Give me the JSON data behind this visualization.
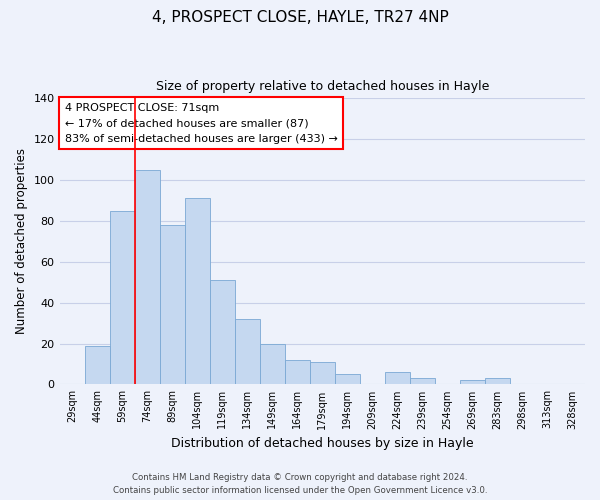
{
  "title": "4, PROSPECT CLOSE, HAYLE, TR27 4NP",
  "subtitle": "Size of property relative to detached houses in Hayle",
  "xlabel": "Distribution of detached houses by size in Hayle",
  "ylabel": "Number of detached properties",
  "categories": [
    "29sqm",
    "44sqm",
    "59sqm",
    "74sqm",
    "89sqm",
    "104sqm",
    "119sqm",
    "134sqm",
    "149sqm",
    "164sqm",
    "179sqm",
    "194sqm",
    "209sqm",
    "224sqm",
    "239sqm",
    "254sqm",
    "269sqm",
    "283sqm",
    "298sqm",
    "313sqm",
    "328sqm"
  ],
  "values": [
    0,
    19,
    85,
    105,
    78,
    91,
    51,
    32,
    20,
    12,
    11,
    5,
    0,
    6,
    3,
    0,
    2,
    3,
    0,
    0,
    0
  ],
  "bar_color": "#c5d8f0",
  "bar_edge_color": "#7aa8d4",
  "bar_linewidth": 0.6,
  "ylim": [
    0,
    140
  ],
  "yticks": [
    0,
    20,
    40,
    60,
    80,
    100,
    120,
    140
  ],
  "red_line_index": 3,
  "property_line_label": "4 PROSPECT CLOSE: 71sqm",
  "annotation_line1": "← 17% of detached houses are smaller (87)",
  "annotation_line2": "83% of semi-detached houses are larger (433) →",
  "footer_line1": "Contains HM Land Registry data © Crown copyright and database right 2024.",
  "footer_line2": "Contains public sector information licensed under the Open Government Licence v3.0.",
  "background_color": "#eef2fb",
  "plot_bg_color": "#eef2fb",
  "grid_color": "#c8d0e8"
}
